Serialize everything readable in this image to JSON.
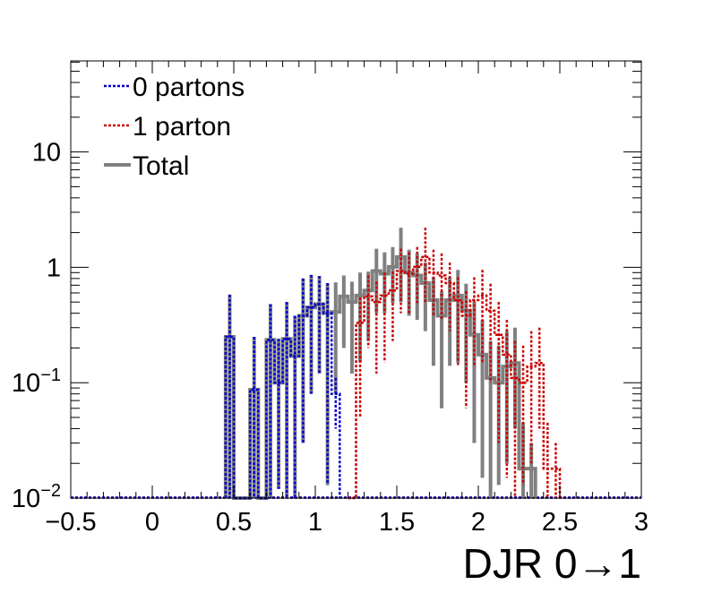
{
  "chart_data": {
    "type": "line",
    "style": "step-histogram",
    "xlabel": "DJR 0→1",
    "xlim": [
      -0.5,
      3.0
    ],
    "ylim": [
      0.01,
      63
    ],
    "yscale": "log",
    "bin_width": 0.05,
    "x_ticks": [
      {
        "value": -0.5,
        "label": "−0.5"
      },
      {
        "value": 0,
        "label": "0"
      },
      {
        "value": 0.5,
        "label": "0.5"
      },
      {
        "value": 1,
        "label": "1"
      },
      {
        "value": 1.5,
        "label": "1.5"
      },
      {
        "value": 2,
        "label": "2"
      },
      {
        "value": 2.5,
        "label": "2.5"
      },
      {
        "value": 3,
        "label": "3"
      }
    ],
    "y_ticks": [
      {
        "value": 0.01,
        "base": "10",
        "exp": "−2"
      },
      {
        "value": 0.1,
        "base": "10",
        "exp": "−1"
      },
      {
        "value": 1,
        "label": "1"
      },
      {
        "value": 10,
        "label": "10"
      }
    ],
    "legend_position": "top-left",
    "series": [
      {
        "name": "0 partons",
        "color": "#0000cc",
        "line": "dotted",
        "start": 0.45,
        "values": [
          0.25,
          0.01,
          0.01,
          0.087,
          0.01,
          0.235,
          0.1,
          0.24,
          0.17,
          0.38,
          0.45,
          0.48,
          0.4,
          0.08
        ],
        "upper": [
          0.58,
          0.01,
          0.01,
          0.25,
          0.01,
          0.48,
          0.24,
          0.5,
          0.38,
          0.8,
          0.86,
          0.84,
          0.73,
          0.11
        ],
        "lower": [
          0.01,
          0.01,
          0.01,
          0.01,
          0.01,
          0.01,
          0.012,
          0.01,
          0.01,
          0.03,
          0.08,
          0.12,
          0.013,
          0.04
        ]
      },
      {
        "name": "1 parton",
        "color": "#cc0000",
        "line": "dotted",
        "start": 1.2,
        "values": [
          0.01,
          0.33,
          0.56,
          0.5,
          0.57,
          0.63,
          0.93,
          0.88,
          1.01,
          1.23,
          0.9,
          0.85,
          0.73,
          0.52,
          0.38,
          0.52,
          0.57,
          0.42,
          0.26,
          0.175,
          0.11,
          0.1,
          0.138,
          0.148,
          0.018,
          0.018
        ],
        "upper": [
          0.01,
          0.55,
          0.85,
          0.75,
          0.9,
          0.92,
          1.45,
          1.35,
          1.5,
          2.2,
          1.42,
          1.32,
          1.1,
          0.82,
          0.62,
          0.82,
          0.95,
          0.72,
          0.5,
          0.35,
          0.23,
          0.21,
          0.28,
          0.3,
          0.045,
          0.03
        ],
        "lower": [
          0.01,
          0.05,
          0.2,
          0.12,
          0.15,
          0.23,
          0.4,
          0.4,
          0.49,
          0.5,
          0.38,
          0.35,
          0.28,
          0.14,
          0.06,
          0.14,
          0.15,
          0.1,
          0.03,
          0.015,
          0.01,
          0.013,
          0.02,
          0.04,
          0.01,
          0.01
        ]
      },
      {
        "name": "Total",
        "color": "#808080",
        "line": "solid",
        "start": 0.45,
        "values": [
          0.25,
          0.01,
          0.01,
          0.087,
          0.01,
          0.235,
          0.1,
          0.24,
          0.17,
          0.38,
          0.45,
          0.48,
          0.4,
          0.41,
          0.56,
          0.5,
          0.57,
          0.63,
          0.93,
          0.88,
          1.01,
          1.23,
          0.9,
          0.85,
          0.73,
          0.52,
          0.38,
          0.52,
          0.57,
          0.42,
          0.26,
          0.175,
          0.11,
          0.1,
          0.138,
          0.148,
          0.018,
          0.018
        ],
        "upper": [
          0.58,
          0.01,
          0.01,
          0.25,
          0.01,
          0.48,
          0.24,
          0.5,
          0.38,
          0.8,
          0.86,
          0.84,
          0.73,
          0.74,
          0.85,
          0.75,
          0.9,
          0.92,
          1.45,
          1.35,
          1.5,
          2.2,
          1.42,
          1.32,
          1.1,
          0.82,
          0.62,
          0.82,
          0.95,
          0.72,
          0.5,
          0.35,
          0.23,
          0.21,
          0.28,
          0.3,
          0.045,
          0.03
        ],
        "lower": [
          0.01,
          0.01,
          0.01,
          0.01,
          0.01,
          0.01,
          0.012,
          0.01,
          0.01,
          0.03,
          0.08,
          0.12,
          0.013,
          0.08,
          0.2,
          0.12,
          0.15,
          0.23,
          0.4,
          0.4,
          0.49,
          0.5,
          0.38,
          0.35,
          0.28,
          0.14,
          0.06,
          0.14,
          0.15,
          0.1,
          0.03,
          0.015,
          0.01,
          0.013,
          0.02,
          0.04,
          0.01,
          0.01
        ]
      }
    ]
  }
}
